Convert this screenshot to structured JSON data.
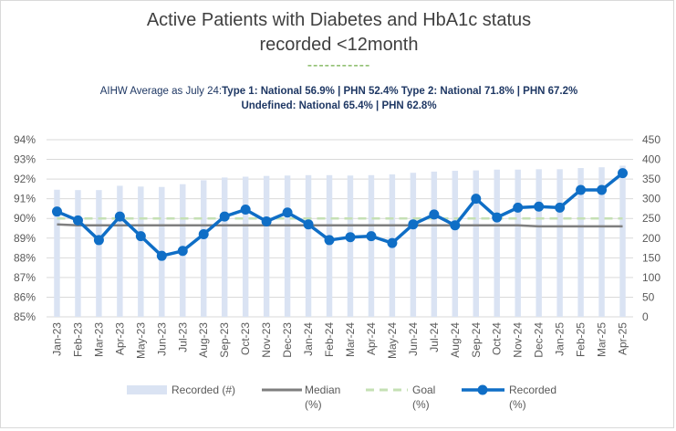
{
  "chart_data": {
    "type": "bar+line",
    "title": "Active Patients with Diabetes and HbA1c status recorded <12month",
    "title_lines": [
      "Active Patients with Diabetes and HbA1c status",
      "recorded <12month"
    ],
    "divider_text": "-----------",
    "note_lead": "AIHW Average as July 24:",
    "note_bold_1": "Type 1: National 56.9% | PHN 52.4% Type 2: National 71.8% | PHN 67.2%",
    "note_bold_2": "Undefined: National 65.4% | PHN 62.8%",
    "categories": [
      "Jan-23",
      "Feb-23",
      "Mar-23",
      "Apr-23",
      "May-23",
      "Jun-23",
      "Jul-23",
      "Aug-23",
      "Sep-23",
      "Oct-23",
      "Nov-23",
      "Dec-23",
      "Jan-24",
      "Feb-24",
      "Mar-24",
      "Apr-24",
      "May-24",
      "Jun-24",
      "Jul-24",
      "Aug-24",
      "Sep-24",
      "Oct-24",
      "Nov-24",
      "Dec-24",
      "Jan-25",
      "Feb-25",
      "Mar-25",
      "Apr-25"
    ],
    "left_axis": {
      "min": 85,
      "max": 94,
      "step": 1,
      "ticks": [
        "85%",
        "86%",
        "87%",
        "88%",
        "89%",
        "90%",
        "91%",
        "92%",
        "93%",
        "94%"
      ]
    },
    "right_axis": {
      "min": 0,
      "max": 450,
      "step": 50,
      "ticks": [
        "0",
        "50",
        "100",
        "150",
        "200",
        "250",
        "300",
        "350",
        "400",
        "450"
      ]
    },
    "grid": true,
    "legend_position": "bottom",
    "series": [
      {
        "name": "Recorded (#)",
        "legend_line_1": "Recorded (#)",
        "legend_line_2": "",
        "kind": "bar",
        "axis": "right",
        "color": "#dae3f3",
        "values": [
          323,
          322,
          322,
          333,
          331,
          330,
          337,
          347,
          354,
          356,
          358,
          359,
          360,
          360,
          359,
          360,
          362,
          366,
          369,
          371,
          372,
          374,
          374,
          375,
          375,
          378,
          380,
          384
        ]
      },
      {
        "name": "Median (%)",
        "legend_line_1": "Median",
        "legend_line_2": "(%)",
        "kind": "line",
        "axis": "left",
        "color": "#7f7f7f",
        "values": [
          89.7,
          89.65,
          89.65,
          89.65,
          89.65,
          89.65,
          89.65,
          89.65,
          89.65,
          89.65,
          89.65,
          89.65,
          89.65,
          89.65,
          89.65,
          89.65,
          89.65,
          89.65,
          89.65,
          89.65,
          89.65,
          89.65,
          89.65,
          89.6,
          89.6,
          89.6,
          89.6,
          89.6
        ]
      },
      {
        "name": "Goal (%)",
        "legend_line_1": "Goal",
        "legend_line_2": "(%)",
        "kind": "dashed-line",
        "axis": "left",
        "color": "#c5e0b4",
        "values": [
          90,
          90,
          90,
          90,
          90,
          90,
          90,
          90,
          90,
          90,
          90,
          90,
          90,
          90,
          90,
          90,
          90,
          90,
          90,
          90,
          90,
          90,
          90,
          90,
          90,
          90,
          90,
          90
        ]
      },
      {
        "name": "Recorded (%)",
        "legend_line_1": "Recorded",
        "legend_line_2": "(%)",
        "kind": "line-markers",
        "axis": "left",
        "color": "#0f6ec6",
        "values": [
          90.35,
          89.9,
          88.9,
          90.1,
          89.1,
          88.1,
          88.35,
          89.2,
          90.1,
          90.45,
          89.85,
          90.3,
          89.7,
          88.9,
          89.05,
          89.1,
          88.75,
          89.7,
          90.2,
          89.65,
          91.0,
          90.05,
          90.55,
          90.6,
          90.55,
          91.45,
          91.45,
          92.3
        ]
      }
    ]
  }
}
